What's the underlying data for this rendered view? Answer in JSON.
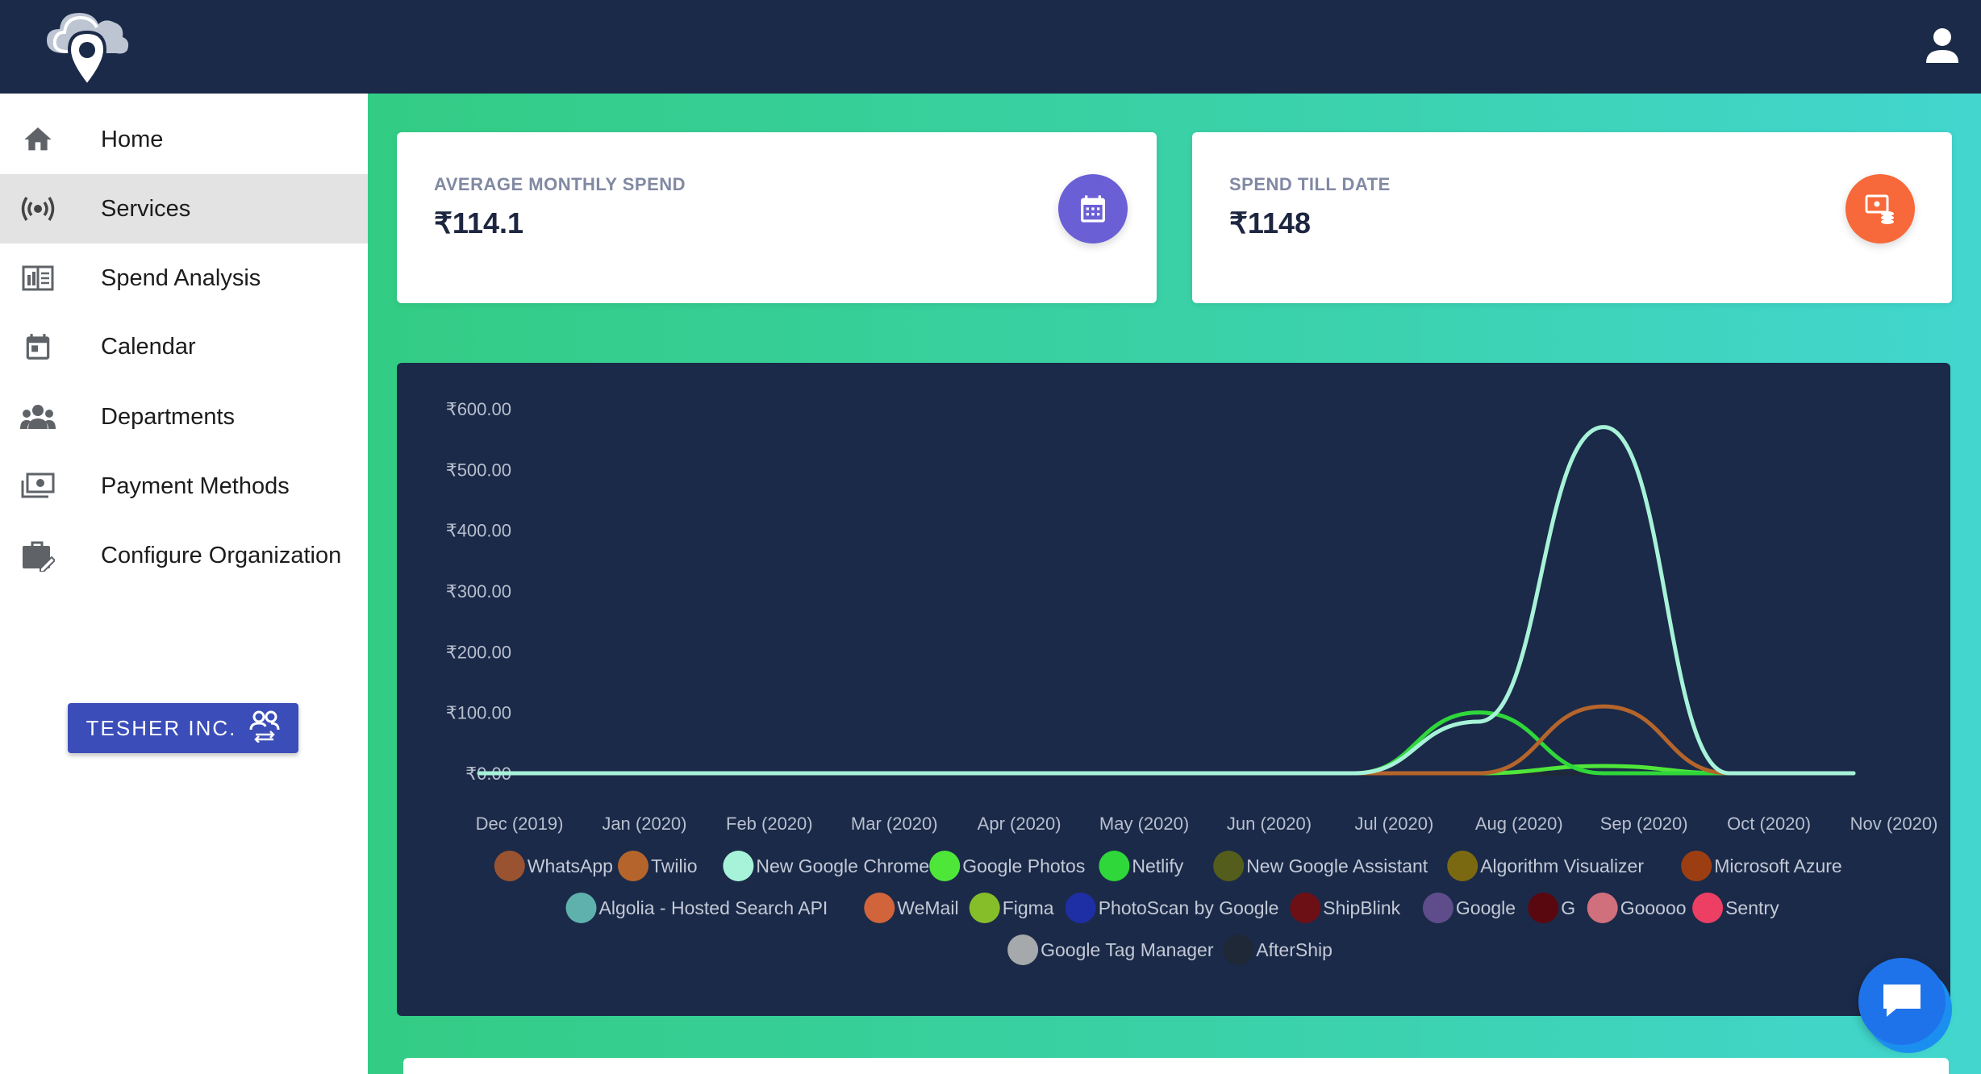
{
  "header": {
    "logo_icon": "cloud-location-pin-logo",
    "user_icon": "user-icon"
  },
  "sidebar": {
    "items": [
      {
        "label": "Home",
        "icon": "home-icon",
        "active": false
      },
      {
        "label": "Services",
        "icon": "broadcast-icon",
        "active": true
      },
      {
        "label": "Spend Analysis",
        "icon": "analysis-icon",
        "active": false
      },
      {
        "label": "Calendar",
        "icon": "calendar-icon",
        "active": false
      },
      {
        "label": "Departments",
        "icon": "group-icon",
        "active": false
      },
      {
        "label": "Payment Methods",
        "icon": "money-icon",
        "active": false
      },
      {
        "label": "Configure Organization",
        "icon": "briefcase-edit-icon",
        "active": false
      }
    ],
    "org_button": {
      "label": "TESHER INC.",
      "icon": "switch-users-icon"
    }
  },
  "cards": {
    "average": {
      "label": "AVERAGE MONTHLY SPEND",
      "value": "₹114.1",
      "icon": "calendar-icon",
      "color": "#6b5fd6"
    },
    "total": {
      "label": "SPEND TILL DATE",
      "value": "₹1148",
      "icon": "money-stack-icon",
      "color": "#f7693a"
    }
  },
  "chart_data": {
    "type": "line",
    "title": "",
    "xlabel": "",
    "ylabel": "",
    "ylim": [
      0,
      600
    ],
    "y_ticks": [
      "₹600.00",
      "₹500.00",
      "₹400.00",
      "₹300.00",
      "₹200.00",
      "₹100.00",
      "₹0.00"
    ],
    "categories": [
      "Dec (2019)",
      "Jan (2020)",
      "Feb (2020)",
      "Mar (2020)",
      "Apr (2020)",
      "May (2020)",
      "Jun (2020)",
      "Jul (2020)",
      "Aug (2020)",
      "Sep (2020)",
      "Oct (2020)",
      "Nov (2020)"
    ],
    "grid": false,
    "legend_position": "bottom",
    "series": [
      {
        "name": "WhatsApp",
        "color": "#9a5330",
        "values": [
          0,
          0,
          0,
          0,
          0,
          0,
          0,
          0,
          0,
          0,
          0,
          0
        ]
      },
      {
        "name": "Twilio",
        "color": "#b5652b",
        "values": [
          0,
          0,
          0,
          0,
          0,
          0,
          0,
          0,
          0,
          110,
          0,
          0
        ]
      },
      {
        "name": "New Google Chrome",
        "color": "#a7f3d9",
        "values": [
          0,
          0,
          0,
          0,
          0,
          0,
          0,
          0,
          85,
          570,
          0,
          0
        ]
      },
      {
        "name": "Google Photos",
        "color": "#4fe63a",
        "values": [
          0,
          0,
          0,
          0,
          0,
          0,
          0,
          0,
          0,
          12,
          0,
          0
        ]
      },
      {
        "name": "Netlify",
        "color": "#2fd73a",
        "values": [
          0,
          0,
          0,
          0,
          0,
          0,
          0,
          0,
          100,
          0,
          0,
          0
        ]
      },
      {
        "name": "New Google Assistant",
        "color": "#545d1c",
        "values": [
          0,
          0,
          0,
          0,
          0,
          0,
          0,
          0,
          0,
          0,
          0,
          0
        ]
      },
      {
        "name": "Algorithm Visualizer",
        "color": "#7b6912",
        "values": [
          0,
          0,
          0,
          0,
          0,
          0,
          0,
          0,
          0,
          0,
          0,
          0
        ]
      },
      {
        "name": "Microsoft Azure",
        "color": "#9c3e12",
        "values": [
          0,
          0,
          0,
          0,
          0,
          0,
          0,
          0,
          0,
          0,
          0,
          0
        ]
      },
      {
        "name": "Algolia - Hosted Search API",
        "color": "#5fb1ad",
        "values": [
          0,
          0,
          0,
          0,
          0,
          0,
          0,
          0,
          0,
          0,
          0,
          0
        ]
      },
      {
        "name": "WeMail",
        "color": "#d2643b",
        "values": [
          0,
          0,
          0,
          0,
          0,
          0,
          0,
          0,
          0,
          0,
          0,
          0
        ]
      },
      {
        "name": "Figma",
        "color": "#86be2a",
        "values": [
          0,
          0,
          0,
          0,
          0,
          0,
          0,
          0,
          0,
          0,
          0,
          0
        ]
      },
      {
        "name": "PhotoScan by Google",
        "color": "#1e2fa5",
        "values": [
          0,
          0,
          0,
          0,
          0,
          0,
          0,
          0,
          0,
          0,
          0,
          0
        ]
      },
      {
        "name": "ShipBlink",
        "color": "#6d1016",
        "values": [
          0,
          0,
          0,
          0,
          0,
          0,
          0,
          0,
          0,
          0,
          0,
          0
        ]
      },
      {
        "name": "Google",
        "color": "#5e4d8a",
        "values": [
          0,
          0,
          0,
          0,
          0,
          0,
          0,
          0,
          0,
          0,
          0,
          0
        ]
      },
      {
        "name": "G",
        "color": "#5a0810",
        "values": [
          0,
          0,
          0,
          0,
          0,
          0,
          0,
          0,
          0,
          0,
          0,
          0
        ]
      },
      {
        "name": "Gooooo",
        "color": "#d0707c",
        "values": [
          0,
          0,
          0,
          0,
          0,
          0,
          0,
          0,
          0,
          0,
          0,
          0
        ]
      },
      {
        "name": "Sentry",
        "color": "#ec3f63",
        "values": [
          0,
          0,
          0,
          0,
          0,
          0,
          0,
          0,
          0,
          0,
          0,
          0
        ]
      },
      {
        "name": "Google Tag Manager",
        "color": "#a6a9ab",
        "values": [
          0,
          0,
          0,
          0,
          0,
          0,
          0,
          0,
          0,
          0,
          0,
          0
        ]
      },
      {
        "name": "AfterShip",
        "color": "#1f2836",
        "values": [
          0,
          0,
          0,
          0,
          0,
          0,
          0,
          0,
          0,
          0,
          0,
          0
        ]
      }
    ]
  },
  "chat": {
    "icon": "chat-icon"
  }
}
